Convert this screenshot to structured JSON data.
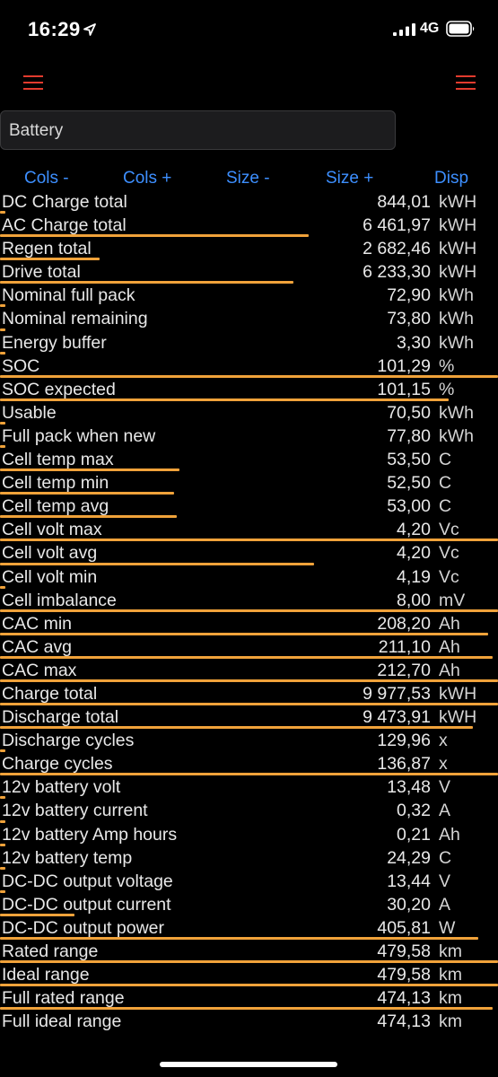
{
  "status": {
    "time": "16:29",
    "network": "4G"
  },
  "search": {
    "value": "Battery"
  },
  "toolbar": {
    "cols_minus": "Cols -",
    "cols_plus": "Cols +",
    "size_minus": "Size -",
    "size_plus": "Size +",
    "disp": "Disp"
  },
  "colors": {
    "accent": "#f0a23a",
    "link": "#3d8fff",
    "menu": "#e23b2e"
  },
  "rows": [
    {
      "label": "DC Charge total",
      "value": "844,01",
      "unit": "kWH",
      "bar_fraction": 0.01
    },
    {
      "label": "AC Charge total",
      "value": "6 461,97",
      "unit": "kWH",
      "bar_fraction": 0.62
    },
    {
      "label": "Regen total",
      "value": "2 682,46",
      "unit": "kWH",
      "bar_fraction": 0.2
    },
    {
      "label": "Drive total",
      "value": "6 233,30",
      "unit": "kWH",
      "bar_fraction": 0.59
    },
    {
      "label": "Nominal full pack",
      "value": "72,90",
      "unit": "kWh",
      "bar_fraction": 0.01
    },
    {
      "label": "Nominal remaining",
      "value": "73,80",
      "unit": "kWh",
      "bar_fraction": 0.01
    },
    {
      "label": "Energy buffer",
      "value": "3,30",
      "unit": "kWh",
      "bar_fraction": 0.01
    },
    {
      "label": "SOC",
      "value": "101,29",
      "unit": "%",
      "bar_fraction": 1.0
    },
    {
      "label": "SOC expected",
      "value": "101,15",
      "unit": "%",
      "bar_fraction": 0.9
    },
    {
      "label": "Usable",
      "value": "70,50",
      "unit": "kWh",
      "bar_fraction": 0.01
    },
    {
      "label": "Full pack when new",
      "value": "77,80",
      "unit": "kWh",
      "bar_fraction": 0.01
    },
    {
      "label": "Cell temp max",
      "value": "53,50",
      "unit": "C",
      "bar_fraction": 0.36
    },
    {
      "label": "Cell temp min",
      "value": "52,50",
      "unit": "C",
      "bar_fraction": 0.35
    },
    {
      "label": "Cell temp avg",
      "value": "53,00",
      "unit": "C",
      "bar_fraction": 0.355
    },
    {
      "label": "Cell volt max",
      "value": "4,20",
      "unit": "Vc",
      "bar_fraction": 1.0
    },
    {
      "label": "Cell volt avg",
      "value": "4,20",
      "unit": "Vc",
      "bar_fraction": 0.63
    },
    {
      "label": "Cell volt min",
      "value": "4,19",
      "unit": "Vc",
      "bar_fraction": 0.01
    },
    {
      "label": "Cell imbalance",
      "value": "8,00",
      "unit": "mV",
      "bar_fraction": 1.0
    },
    {
      "label": "CAC min",
      "value": "208,20",
      "unit": "Ah",
      "bar_fraction": 0.98
    },
    {
      "label": "CAC avg",
      "value": "211,10",
      "unit": "Ah",
      "bar_fraction": 0.99
    },
    {
      "label": "CAC max",
      "value": "212,70",
      "unit": "Ah",
      "bar_fraction": 1.0
    },
    {
      "label": "Charge total",
      "value": "9 977,53",
      "unit": "kWH",
      "bar_fraction": 1.0
    },
    {
      "label": "Discharge total",
      "value": "9 473,91",
      "unit": "kWH",
      "bar_fraction": 0.95
    },
    {
      "label": "Discharge cycles",
      "value": "129,96",
      "unit": "x",
      "bar_fraction": 0.01
    },
    {
      "label": "Charge cycles",
      "value": "136,87",
      "unit": "x",
      "bar_fraction": 1.0
    },
    {
      "label": "12v battery volt",
      "value": "13,48",
      "unit": "V",
      "bar_fraction": 0.01
    },
    {
      "label": "12v battery current",
      "value": "0,32",
      "unit": "A",
      "bar_fraction": 0.01
    },
    {
      "label": "12v battery Amp hours",
      "value": "0,21",
      "unit": "Ah",
      "bar_fraction": 0.01
    },
    {
      "label": "12v battery temp",
      "value": "24,29",
      "unit": "C",
      "bar_fraction": 0.01
    },
    {
      "label": "DC-DC output voltage",
      "value": "13,44",
      "unit": "V",
      "bar_fraction": 0.01
    },
    {
      "label": "DC-DC output current",
      "value": "30,20",
      "unit": "A",
      "bar_fraction": 0.15
    },
    {
      "label": "DC-DC output power",
      "value": "405,81",
      "unit": "W",
      "bar_fraction": 0.96
    },
    {
      "label": "Rated range",
      "value": "479,58",
      "unit": "km",
      "bar_fraction": 1.0
    },
    {
      "label": "Ideal range",
      "value": "479,58",
      "unit": "km",
      "bar_fraction": 1.0
    },
    {
      "label": "Full rated range",
      "value": "474,13",
      "unit": "km",
      "bar_fraction": 0.99
    },
    {
      "label": "Full ideal range",
      "value": "474,13",
      "unit": "km",
      "bar_fraction": 0.0
    }
  ]
}
